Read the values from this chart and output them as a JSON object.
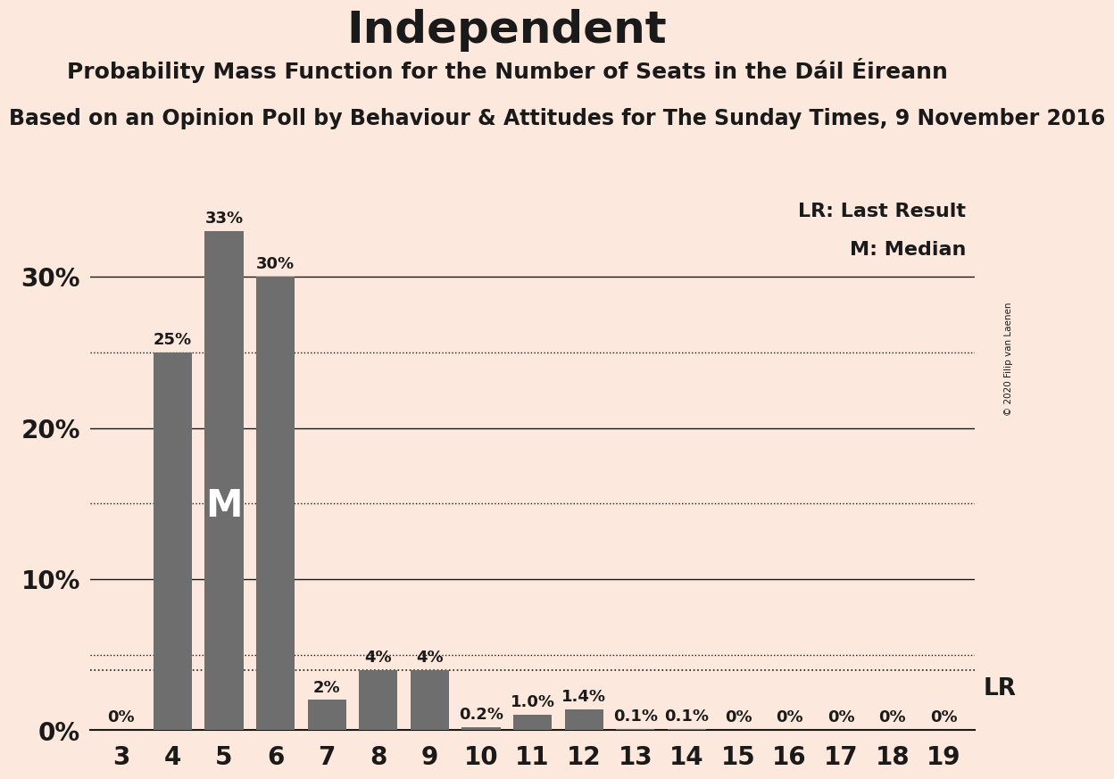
{
  "title": "Independent",
  "subtitle": "Probability Mass Function for the Number of Seats in the Dáil Éireann",
  "source": "Based on an Opinion Poll by Behaviour & Attitudes for The Sunday Times, 9 November 2016",
  "copyright": "© 2020 Filip van Laenen",
  "categories": [
    3,
    4,
    5,
    6,
    7,
    8,
    9,
    10,
    11,
    12,
    13,
    14,
    15,
    16,
    17,
    18,
    19
  ],
  "values": [
    0.0,
    0.25,
    0.33,
    0.3,
    0.02,
    0.04,
    0.04,
    0.002,
    0.01,
    0.014,
    0.001,
    0.001,
    0.0,
    0.0,
    0.0,
    0.0,
    0.0
  ],
  "bar_labels": [
    "0%",
    "25%",
    "33%",
    "30%",
    "2%",
    "4%",
    "4%",
    "0.2%",
    "1.0%",
    "1.4%",
    "0.1%",
    "0.1%",
    "0%",
    "0%",
    "0%",
    "0%",
    "0%"
  ],
  "bar_color": "#6e6e6e",
  "background_color": "#fce8dc",
  "text_color": "#1a1a1a",
  "median_bar_value": 5,
  "median_label": "M",
  "lr_value": 0.04,
  "lr_label": "LR",
  "ylim": [
    0,
    0.36
  ],
  "yticks": [
    0.0,
    0.1,
    0.2,
    0.3
  ],
  "ytick_labels": [
    "0%",
    "10%",
    "20%",
    "30%"
  ],
  "dotted_lines": [
    0.05,
    0.15,
    0.25
  ],
  "lr_dotted_line": 0.04,
  "title_fontsize": 36,
  "subtitle_fontsize": 18,
  "source_fontsize": 17,
  "bar_label_fontsize": 13,
  "axis_label_fontsize": 20,
  "legend_fontsize": 16
}
